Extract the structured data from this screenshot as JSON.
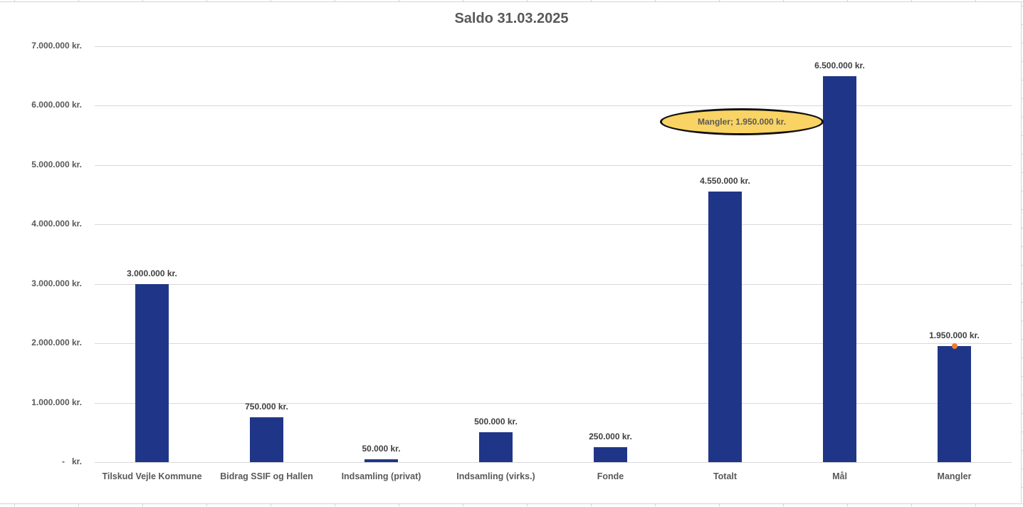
{
  "chart_data": {
    "type": "bar",
    "title": "Saldo 31.03.2025",
    "xlabel": "",
    "ylabel": "",
    "ylim": [
      0,
      7000000
    ],
    "grid": true,
    "legend": null,
    "categories": [
      "Tilskud Vejle Kommune",
      "Bidrag SSIF og Hallen",
      "Indsamling (privat)",
      "Indsamling (virks.)",
      "Fonde",
      "Totalt",
      "Mål",
      "Mangler"
    ],
    "values": [
      3000000,
      750000,
      50000,
      500000,
      250000,
      4550000,
      6500000,
      1950000
    ],
    "data_labels": [
      "3.000.000 kr.",
      "750.000 kr.",
      "50.000 kr.",
      "500.000 kr.",
      "250.000 kr.",
      "4.550.000 kr.",
      "6.500.000 kr.",
      "1.950.000 kr."
    ],
    "y_ticks": [
      {
        "value": 0,
        "label": "-   kr."
      },
      {
        "value": 1000000,
        "label": "1.000.000 kr."
      },
      {
        "value": 2000000,
        "label": "2.000.000 kr."
      },
      {
        "value": 3000000,
        "label": "3.000.000 kr."
      },
      {
        "value": 4000000,
        "label": "4.000.000 kr."
      },
      {
        "value": 5000000,
        "label": "5.000.000 kr."
      },
      {
        "value": 6000000,
        "label": "6.000.000 kr."
      },
      {
        "value": 7000000,
        "label": "7.000.000 kr."
      }
    ],
    "annotations": [
      {
        "text": "Mangler;  1.950.000 kr.",
        "shape": "ellipse",
        "fill": "#f9d363",
        "border": "#111111"
      },
      {
        "type": "point-marker",
        "category": "Mangler",
        "value": 1950000,
        "color": "#ed7d31"
      }
    ],
    "colors": {
      "bar": "#1f3688",
      "marker": "#ed7d31",
      "gridline": "#d9d9d9",
      "text": "#595959"
    }
  },
  "title": "Saldo 31.03.2025",
  "callout": {
    "text": "Mangler;  1.950.000 kr."
  },
  "y_axis": {
    "labels": [
      "-   kr.",
      "1.000.000 kr.",
      "2.000.000 kr.",
      "3.000.000 kr.",
      "4.000.000 kr.",
      "5.000.000 kr.",
      "6.000.000 kr.",
      "7.000.000 kr."
    ]
  },
  "bars": [
    {
      "category": "Tilskud Vejle Kommune",
      "label": "3.000.000 kr."
    },
    {
      "category": "Bidrag SSIF og Hallen",
      "label": "750.000 kr."
    },
    {
      "category": "Indsamling (privat)",
      "label": "50.000 kr."
    },
    {
      "category": "Indsamling (virks.)",
      "label": "500.000 kr."
    },
    {
      "category": "Fonde",
      "label": "250.000 kr."
    },
    {
      "category": "Totalt",
      "label": "4.550.000 kr."
    },
    {
      "category": "Mål",
      "label": "6.500.000 kr."
    },
    {
      "category": "Mangler",
      "label": "1.950.000 kr."
    }
  ]
}
